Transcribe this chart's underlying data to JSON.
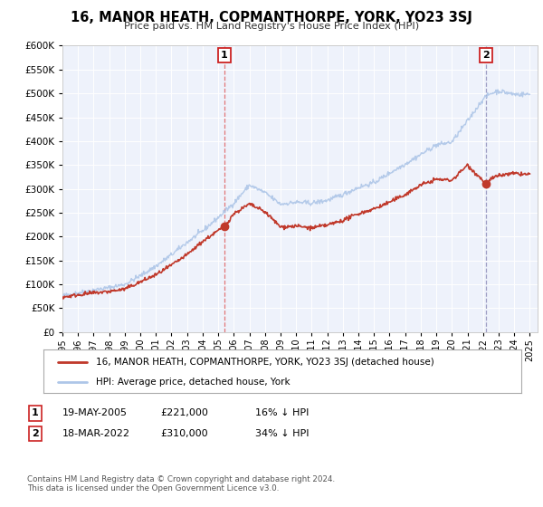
{
  "title": "16, MANOR HEATH, COPMANTHORPE, YORK, YO23 3SJ",
  "subtitle": "Price paid vs. HM Land Registry's House Price Index (HPI)",
  "legend_line1": "16, MANOR HEATH, COPMANTHORPE, YORK, YO23 3SJ (detached house)",
  "legend_line2": "HPI: Average price, detached house, York",
  "annotation1_date": "19-MAY-2005",
  "annotation1_price": "£221,000",
  "annotation1_hpi": "16% ↓ HPI",
  "annotation2_date": "18-MAR-2022",
  "annotation2_price": "£310,000",
  "annotation2_hpi": "34% ↓ HPI",
  "footer1": "Contains HM Land Registry data © Crown copyright and database right 2024.",
  "footer2": "This data is licensed under the Open Government Licence v3.0.",
  "sale1_year": 2005.38,
  "sale1_price": 221000,
  "sale2_year": 2022.21,
  "sale2_price": 310000,
  "hpi_color": "#aec6e8",
  "price_color": "#c0392b",
  "vline1_color": "#e06060",
  "vline2_color": "#9090bb",
  "ylim_min": 0,
  "ylim_max": 600000,
  "plot_bg_color": "#eef2fb",
  "grid_color": "#ffffff",
  "hpi_key_years": [
    1995,
    1996,
    1997,
    1998,
    1999,
    2000,
    2001,
    2002,
    2003,
    2004,
    2005,
    2006,
    2007,
    2008,
    2009,
    2010,
    2011,
    2012,
    2013,
    2014,
    2015,
    2016,
    2017,
    2018,
    2019,
    2020,
    2021,
    2022,
    2022.5,
    2023,
    2024,
    2025
  ],
  "hpi_key_vals": [
    76000,
    82000,
    88000,
    93000,
    100000,
    118000,
    138000,
    162000,
    188000,
    212000,
    240000,
    270000,
    308000,
    292000,
    268000,
    272000,
    270000,
    276000,
    288000,
    303000,
    313000,
    333000,
    352000,
    372000,
    392000,
    398000,
    442000,
    488000,
    500000,
    505000,
    498000,
    498000
  ],
  "price_key_years": [
    1995,
    1996,
    1997,
    1998,
    1999,
    2000,
    2001,
    2002,
    2003,
    2004,
    2005.38,
    2006,
    2007,
    2008,
    2009,
    2010,
    2011,
    2012,
    2013,
    2014,
    2015,
    2016,
    2017,
    2018,
    2019,
    2020,
    2021,
    2022.21,
    2022.5,
    2023,
    2024,
    2025
  ],
  "price_key_vals": [
    73000,
    78000,
    82000,
    85000,
    90000,
    105000,
    120000,
    140000,
    162000,
    190000,
    221000,
    248000,
    268000,
    252000,
    220000,
    222000,
    218000,
    224000,
    234000,
    248000,
    258000,
    272000,
    288000,
    308000,
    320000,
    318000,
    350000,
    310000,
    320000,
    328000,
    332000,
    330000
  ]
}
